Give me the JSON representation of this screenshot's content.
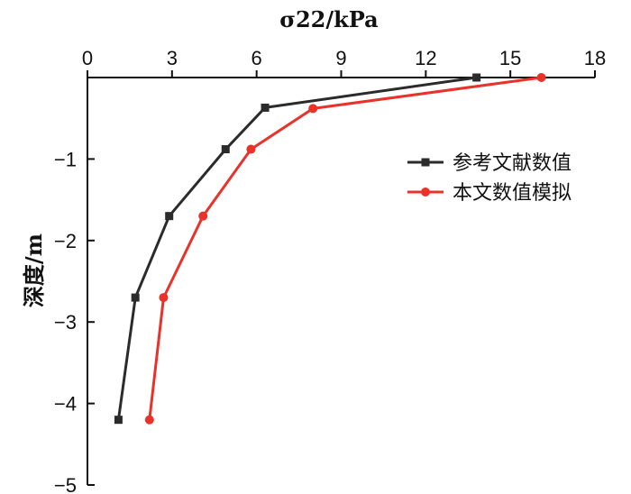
{
  "chart_data": {
    "type": "line",
    "xlabel": "σ22/kPa",
    "ylabel": "深度/m",
    "xlim": [
      0,
      18
    ],
    "ylim": [
      -5,
      0
    ],
    "x_axis_position": "top",
    "x_ticks": [
      0,
      3,
      6,
      9,
      12,
      15,
      18
    ],
    "x_tick_labels": [
      "0",
      "3",
      "6",
      "9",
      "12",
      "15",
      "18"
    ],
    "y_ticks": [
      0,
      -1,
      -2,
      -3,
      -4,
      -5
    ],
    "y_tick_labels": [
      "",
      "−1",
      "−2",
      "−3",
      "−4",
      "−5"
    ],
    "grid": false,
    "legend_position": "right",
    "series": [
      {
        "name": "参考文献数值",
        "color": "#2b2b2b",
        "marker": "square",
        "x": [
          13.8,
          6.3,
          4.9,
          2.9,
          1.7,
          1.1
        ],
        "y": [
          0.0,
          -0.37,
          -0.88,
          -1.7,
          -2.7,
          -4.2
        ]
      },
      {
        "name": "本文数值模拟",
        "color": "#e8322a",
        "marker": "circle",
        "x": [
          16.1,
          8.0,
          5.8,
          4.1,
          2.7,
          2.2
        ],
        "y": [
          0.0,
          -0.38,
          -0.88,
          -1.7,
          -2.7,
          -4.2
        ]
      }
    ]
  }
}
